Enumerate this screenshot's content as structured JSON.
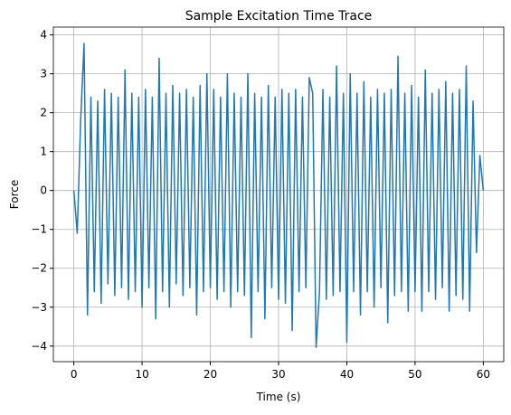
{
  "chart_data": {
    "type": "line",
    "title": "Sample Excitation Time Trace",
    "xlabel": "Time (s)",
    "ylabel": "Force",
    "color": "#1f77b4",
    "grid": true,
    "xlim": [
      -3,
      63
    ],
    "ylim": [
      -4.4,
      4.2
    ],
    "xticks": [
      0,
      10,
      20,
      30,
      40,
      50,
      60
    ],
    "yticks": [
      {
        "value": -4,
        "label": "−4"
      },
      {
        "value": -3,
        "label": "−3"
      },
      {
        "value": -2,
        "label": "−2"
      },
      {
        "value": -1,
        "label": "−1"
      },
      0,
      1,
      2,
      3,
      4
    ],
    "x": [
      0,
      0.5,
      1,
      1.5,
      2,
      2.5,
      3,
      3.5,
      4,
      4.5,
      5,
      5.5,
      6,
      6.5,
      7,
      7.5,
      8,
      8.5,
      9,
      9.5,
      10,
      10.5,
      11,
      11.5,
      12,
      12.5,
      13,
      13.5,
      14,
      14.5,
      15,
      15.5,
      16,
      16.5,
      17,
      17.5,
      18,
      18.5,
      19,
      19.5,
      20,
      20.5,
      21,
      21.5,
      22,
      22.5,
      23,
      23.5,
      24,
      24.5,
      25,
      25.5,
      26,
      26.5,
      27,
      27.5,
      28,
      28.5,
      29,
      29.5,
      30,
      30.5,
      31,
      31.5,
      32,
      32.5,
      33,
      33.5,
      34,
      34.5,
      35,
      35.5,
      36,
      36.5,
      37,
      37.5,
      38,
      38.5,
      39,
      39.5,
      40,
      40.5,
      41,
      41.5,
      42,
      42.5,
      43,
      43.5,
      44,
      44.5,
      45,
      45.5,
      46,
      46.5,
      47,
      47.5,
      48,
      48.5,
      49,
      49.5,
      50,
      50.5,
      51,
      51.5,
      52,
      52.5,
      53,
      53.5,
      54,
      54.5,
      55,
      55.5,
      56,
      56.5,
      57,
      57.5,
      58,
      58.5,
      59,
      59.5,
      60
    ],
    "values": [
      0,
      -1.1,
      1.8,
      3.78,
      -3.2,
      2.4,
      -2.6,
      2.3,
      -2.9,
      2.6,
      -2.4,
      2.5,
      -2.7,
      2.4,
      -2.5,
      3.1,
      -2.8,
      2.5,
      -2.6,
      2.4,
      -3.0,
      2.6,
      -2.5,
      2.4,
      -3.3,
      3.4,
      -2.6,
      2.5,
      -3.0,
      2.7,
      -2.4,
      2.5,
      -2.7,
      2.6,
      -2.5,
      2.4,
      -3.2,
      2.7,
      -2.6,
      3.0,
      -2.5,
      2.6,
      -2.8,
      2.4,
      -2.6,
      3.0,
      -3.0,
      2.5,
      -2.6,
      2.4,
      -2.7,
      3.0,
      -3.78,
      2.5,
      -2.6,
      2.4,
      -3.3,
      2.7,
      -2.5,
      2.4,
      -2.8,
      2.6,
      -2.9,
      2.5,
      -3.6,
      2.6,
      -2.6,
      2.4,
      -2.5,
      2.9,
      2.5,
      -4.03,
      -2.6,
      2.6,
      -2.8,
      2.4,
      -2.7,
      3.2,
      -2.6,
      2.5,
      -3.9,
      3.0,
      -2.6,
      2.5,
      -3.2,
      2.8,
      -2.6,
      2.4,
      -3.0,
      2.6,
      -2.5,
      2.5,
      -3.4,
      2.6,
      -2.7,
      3.45,
      -2.6,
      2.5,
      -3.1,
      2.7,
      -2.6,
      2.4,
      -3.1,
      3.1,
      -2.6,
      2.5,
      -2.8,
      2.6,
      -2.5,
      2.8,
      -3.1,
      2.5,
      -2.7,
      2.6,
      -2.8,
      3.2,
      -3.1,
      2.3,
      -1.6,
      0.9,
      0
    ]
  }
}
